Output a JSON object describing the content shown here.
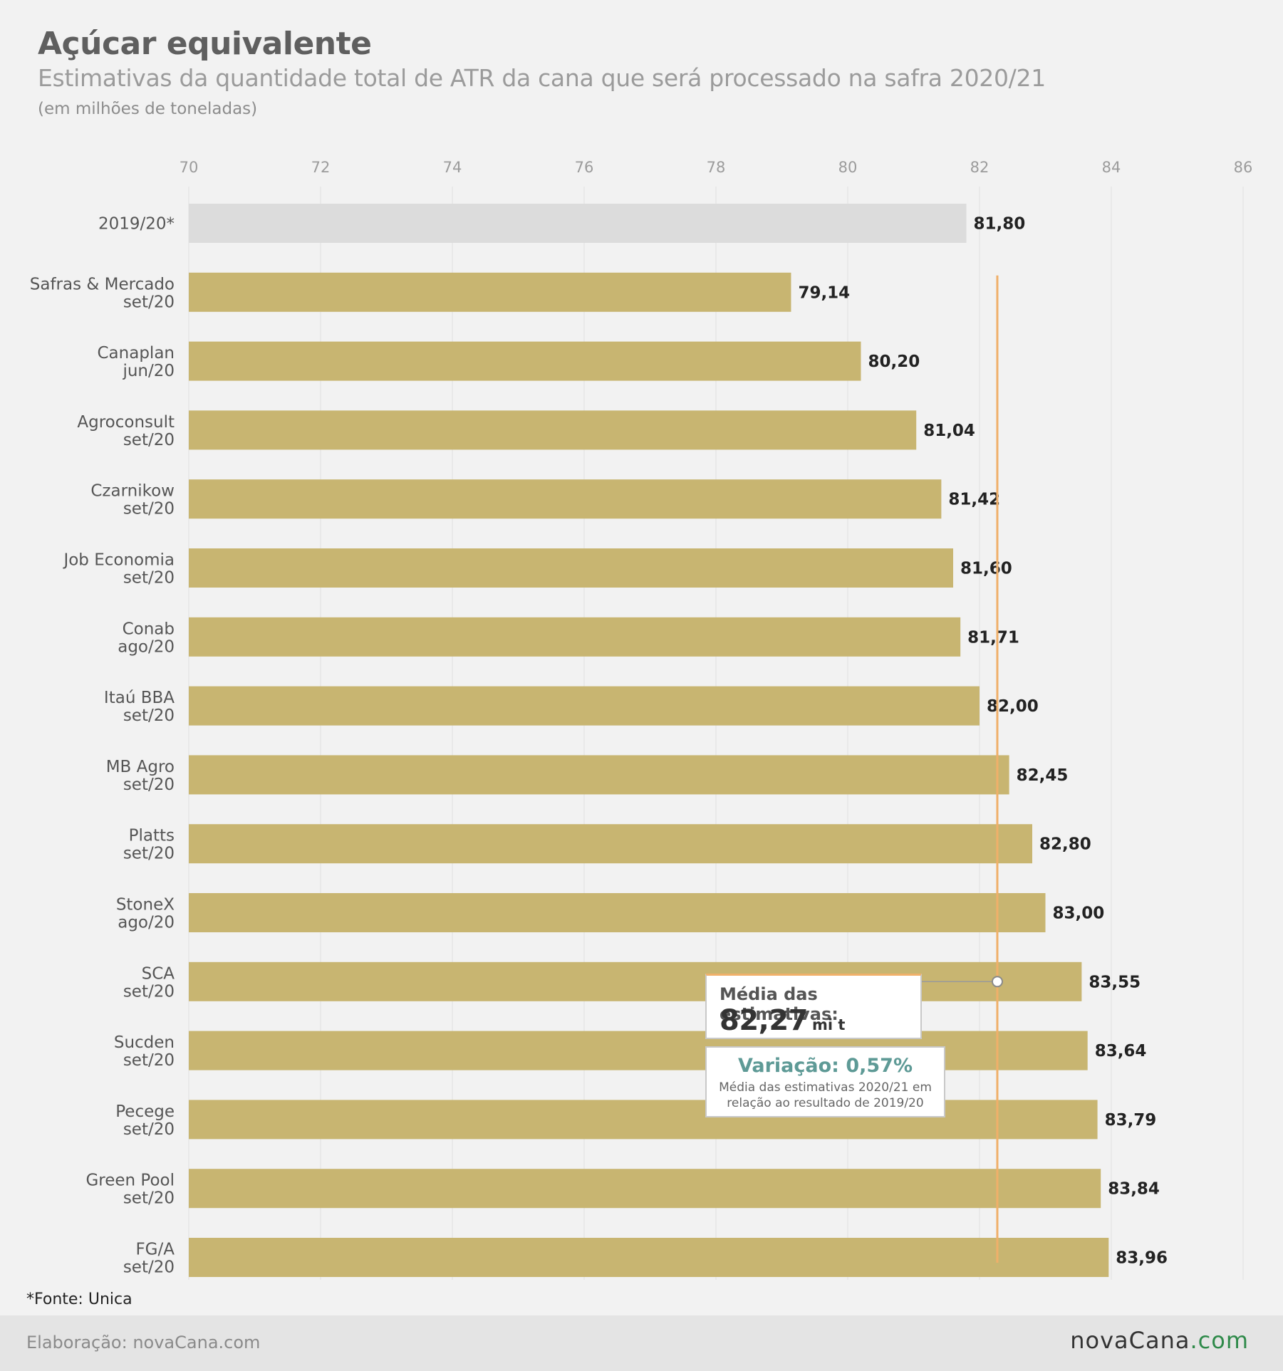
{
  "header": {
    "title": "Açúcar equivalente",
    "subtitle": "Estimativas da quantidade total de ATR da cana que será processado na safra 2020/21",
    "unit_note": "(em milhões de toneladas)"
  },
  "chart_data": {
    "type": "bar",
    "orientation": "horizontal",
    "title": "Açúcar equivalente",
    "subtitle": "Estimativas da quantidade total de ATR da cana que será processado na safra 2020/21",
    "xlim": [
      70,
      86
    ],
    "x_ticks": [
      70,
      72,
      74,
      76,
      78,
      80,
      82,
      84,
      86
    ],
    "grid": true,
    "categories": [
      [
        "2019/20*"
      ],
      [
        "Safras & Mercado",
        "set/20"
      ],
      [
        "Canaplan",
        "jun/20"
      ],
      [
        "Agroconsult",
        "set/20"
      ],
      [
        "Czarnikow",
        "set/20"
      ],
      [
        "Job Economia",
        "set/20"
      ],
      [
        "Conab",
        "ago/20"
      ],
      [
        "Itaú BBA",
        "set/20"
      ],
      [
        "MB Agro",
        "set/20"
      ],
      [
        "Platts",
        "set/20"
      ],
      [
        "StoneX",
        "ago/20"
      ],
      [
        "SCA",
        "set/20"
      ],
      [
        "Sucden",
        "set/20"
      ],
      [
        "Pecege",
        "set/20"
      ],
      [
        "Green Pool",
        "set/20"
      ],
      [
        "FG/A",
        "set/20"
      ]
    ],
    "values": [
      81.8,
      79.14,
      80.2,
      81.04,
      81.42,
      81.6,
      81.71,
      82.0,
      82.45,
      82.8,
      83.0,
      83.55,
      83.64,
      83.79,
      83.84,
      83.96
    ],
    "value_labels": [
      "81,80",
      "79,14",
      "80,20",
      "81,04",
      "81,42",
      "81,60",
      "81,71",
      "82,00",
      "82,45",
      "82,80",
      "83,00",
      "83,55",
      "83,64",
      "83,79",
      "83,84",
      "83,96"
    ],
    "colors": {
      "reference": "#dcdcdc",
      "estimate": "#c8b571",
      "average_line": "#f0b06a"
    },
    "average_line": {
      "value": 82.27
    }
  },
  "annotation": {
    "average_label": "Média das estimativas:",
    "average_value": "82,27",
    "average_unit": "mi t",
    "variation_label": "Variação: 0,57%",
    "variation_desc": "Média das estimativas 2020/21 em relação ao resultado de 2019/20"
  },
  "source": "*Fonte: Unica",
  "footer": {
    "credit": "Elaboração: novaCana.com",
    "logo_main": "novaCana",
    "logo_accent": ".com"
  }
}
